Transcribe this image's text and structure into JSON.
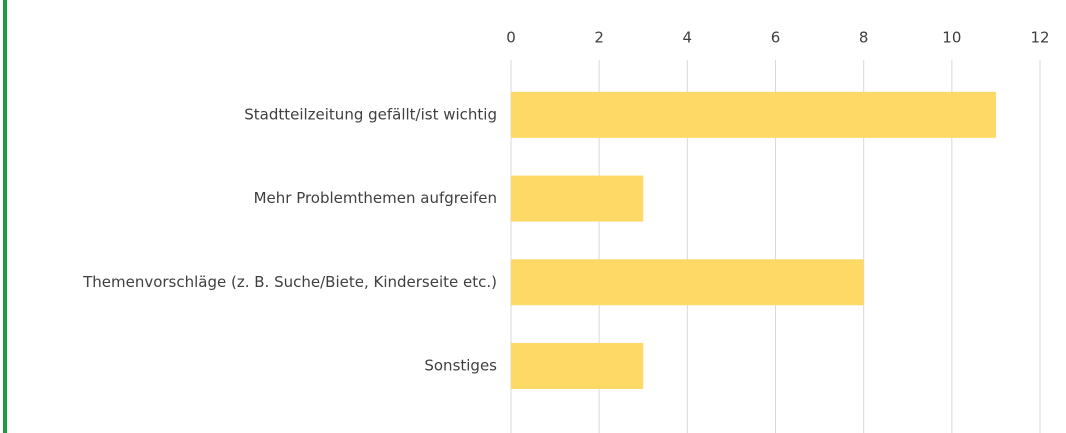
{
  "chart_data": {
    "type": "barh",
    "categories": [
      "Stadtteilzeitung gefällt/ist wichtig",
      "Mehr Problemthemen aufgreifen",
      "Themenvorschläge (z. B. Suche/Biete, Kinderseite etc.)",
      "Sonstiges"
    ],
    "values": [
      11,
      3,
      8,
      3
    ],
    "color": "#fed966",
    "xlim": [
      0,
      12
    ],
    "xticks": [
      0,
      2,
      4,
      6,
      8,
      10,
      12
    ],
    "grid": true
  }
}
